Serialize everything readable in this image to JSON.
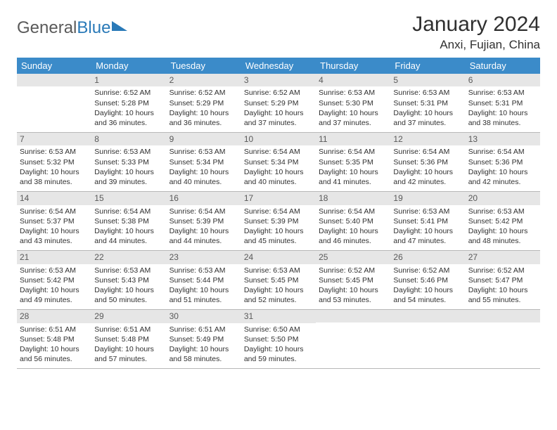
{
  "brand": {
    "textGray": "General",
    "textBlue": "Blue"
  },
  "title": "January 2024",
  "location": "Anxi, Fujian, China",
  "colors": {
    "headerBg": "#3b8bc9",
    "headerText": "#ffffff",
    "dayNumBg": "#e6e6e6",
    "bodyText": "#303030",
    "rowBorder": "#b8b8b8"
  },
  "dayHeaders": [
    "Sunday",
    "Monday",
    "Tuesday",
    "Wednesday",
    "Thursday",
    "Friday",
    "Saturday"
  ],
  "weeks": [
    [
      {
        "n": "",
        "sr": "",
        "ss": "",
        "dl": ""
      },
      {
        "n": "1",
        "sr": "Sunrise: 6:52 AM",
        "ss": "Sunset: 5:28 PM",
        "dl": "Daylight: 10 hours and 36 minutes."
      },
      {
        "n": "2",
        "sr": "Sunrise: 6:52 AM",
        "ss": "Sunset: 5:29 PM",
        "dl": "Daylight: 10 hours and 36 minutes."
      },
      {
        "n": "3",
        "sr": "Sunrise: 6:52 AM",
        "ss": "Sunset: 5:29 PM",
        "dl": "Daylight: 10 hours and 37 minutes."
      },
      {
        "n": "4",
        "sr": "Sunrise: 6:53 AM",
        "ss": "Sunset: 5:30 PM",
        "dl": "Daylight: 10 hours and 37 minutes."
      },
      {
        "n": "5",
        "sr": "Sunrise: 6:53 AM",
        "ss": "Sunset: 5:31 PM",
        "dl": "Daylight: 10 hours and 37 minutes."
      },
      {
        "n": "6",
        "sr": "Sunrise: 6:53 AM",
        "ss": "Sunset: 5:31 PM",
        "dl": "Daylight: 10 hours and 38 minutes."
      }
    ],
    [
      {
        "n": "7",
        "sr": "Sunrise: 6:53 AM",
        "ss": "Sunset: 5:32 PM",
        "dl": "Daylight: 10 hours and 38 minutes."
      },
      {
        "n": "8",
        "sr": "Sunrise: 6:53 AM",
        "ss": "Sunset: 5:33 PM",
        "dl": "Daylight: 10 hours and 39 minutes."
      },
      {
        "n": "9",
        "sr": "Sunrise: 6:53 AM",
        "ss": "Sunset: 5:34 PM",
        "dl": "Daylight: 10 hours and 40 minutes."
      },
      {
        "n": "10",
        "sr": "Sunrise: 6:54 AM",
        "ss": "Sunset: 5:34 PM",
        "dl": "Daylight: 10 hours and 40 minutes."
      },
      {
        "n": "11",
        "sr": "Sunrise: 6:54 AM",
        "ss": "Sunset: 5:35 PM",
        "dl": "Daylight: 10 hours and 41 minutes."
      },
      {
        "n": "12",
        "sr": "Sunrise: 6:54 AM",
        "ss": "Sunset: 5:36 PM",
        "dl": "Daylight: 10 hours and 42 minutes."
      },
      {
        "n": "13",
        "sr": "Sunrise: 6:54 AM",
        "ss": "Sunset: 5:36 PM",
        "dl": "Daylight: 10 hours and 42 minutes."
      }
    ],
    [
      {
        "n": "14",
        "sr": "Sunrise: 6:54 AM",
        "ss": "Sunset: 5:37 PM",
        "dl": "Daylight: 10 hours and 43 minutes."
      },
      {
        "n": "15",
        "sr": "Sunrise: 6:54 AM",
        "ss": "Sunset: 5:38 PM",
        "dl": "Daylight: 10 hours and 44 minutes."
      },
      {
        "n": "16",
        "sr": "Sunrise: 6:54 AM",
        "ss": "Sunset: 5:39 PM",
        "dl": "Daylight: 10 hours and 44 minutes."
      },
      {
        "n": "17",
        "sr": "Sunrise: 6:54 AM",
        "ss": "Sunset: 5:39 PM",
        "dl": "Daylight: 10 hours and 45 minutes."
      },
      {
        "n": "18",
        "sr": "Sunrise: 6:54 AM",
        "ss": "Sunset: 5:40 PM",
        "dl": "Daylight: 10 hours and 46 minutes."
      },
      {
        "n": "19",
        "sr": "Sunrise: 6:53 AM",
        "ss": "Sunset: 5:41 PM",
        "dl": "Daylight: 10 hours and 47 minutes."
      },
      {
        "n": "20",
        "sr": "Sunrise: 6:53 AM",
        "ss": "Sunset: 5:42 PM",
        "dl": "Daylight: 10 hours and 48 minutes."
      }
    ],
    [
      {
        "n": "21",
        "sr": "Sunrise: 6:53 AM",
        "ss": "Sunset: 5:42 PM",
        "dl": "Daylight: 10 hours and 49 minutes."
      },
      {
        "n": "22",
        "sr": "Sunrise: 6:53 AM",
        "ss": "Sunset: 5:43 PM",
        "dl": "Daylight: 10 hours and 50 minutes."
      },
      {
        "n": "23",
        "sr": "Sunrise: 6:53 AM",
        "ss": "Sunset: 5:44 PM",
        "dl": "Daylight: 10 hours and 51 minutes."
      },
      {
        "n": "24",
        "sr": "Sunrise: 6:53 AM",
        "ss": "Sunset: 5:45 PM",
        "dl": "Daylight: 10 hours and 52 minutes."
      },
      {
        "n": "25",
        "sr": "Sunrise: 6:52 AM",
        "ss": "Sunset: 5:45 PM",
        "dl": "Daylight: 10 hours and 53 minutes."
      },
      {
        "n": "26",
        "sr": "Sunrise: 6:52 AM",
        "ss": "Sunset: 5:46 PM",
        "dl": "Daylight: 10 hours and 54 minutes."
      },
      {
        "n": "27",
        "sr": "Sunrise: 6:52 AM",
        "ss": "Sunset: 5:47 PM",
        "dl": "Daylight: 10 hours and 55 minutes."
      }
    ],
    [
      {
        "n": "28",
        "sr": "Sunrise: 6:51 AM",
        "ss": "Sunset: 5:48 PM",
        "dl": "Daylight: 10 hours and 56 minutes."
      },
      {
        "n": "29",
        "sr": "Sunrise: 6:51 AM",
        "ss": "Sunset: 5:48 PM",
        "dl": "Daylight: 10 hours and 57 minutes."
      },
      {
        "n": "30",
        "sr": "Sunrise: 6:51 AM",
        "ss": "Sunset: 5:49 PM",
        "dl": "Daylight: 10 hours and 58 minutes."
      },
      {
        "n": "31",
        "sr": "Sunrise: 6:50 AM",
        "ss": "Sunset: 5:50 PM",
        "dl": "Daylight: 10 hours and 59 minutes."
      },
      {
        "n": "",
        "sr": "",
        "ss": "",
        "dl": ""
      },
      {
        "n": "",
        "sr": "",
        "ss": "",
        "dl": ""
      },
      {
        "n": "",
        "sr": "",
        "ss": "",
        "dl": ""
      }
    ]
  ]
}
